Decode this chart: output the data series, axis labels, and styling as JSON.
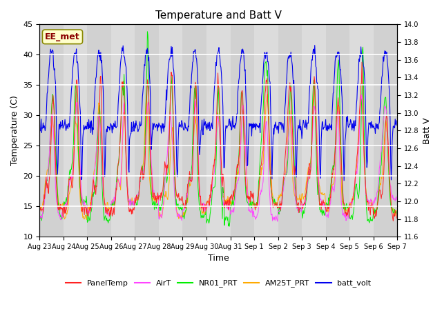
{
  "title": "Temperature and Batt V",
  "xlabel": "Time",
  "ylabel_left": "Temperature (C)",
  "ylabel_right": "Batt V",
  "ylim_left": [
    10,
    45
  ],
  "ylim_right": [
    11.6,
    14.0
  ],
  "annotation_text": "EE_met",
  "annotation_color": "#8B0000",
  "annotation_bg": "#FFFFCC",
  "plot_bg": "#D8D8D8",
  "grid_color": "white",
  "line_colors": {
    "PanelTemp": "#FF2222",
    "AirT": "#FF44FF",
    "NR01_PRT": "#00EE00",
    "AM25T_PRT": "#FFAA00",
    "batt_volt": "#0000EE"
  },
  "x_tick_labels": [
    "Aug 23",
    "Aug 24",
    "Aug 25",
    "Aug 26",
    "Aug 27",
    "Aug 28",
    "Aug 29",
    "Aug 30",
    "Aug 31",
    "Sep 1",
    "Sep 2",
    "Sep 3",
    "Sep 4",
    "Sep 5",
    "Sep 6",
    "Sep 7"
  ],
  "n_days": 15,
  "pts_per_day": 48,
  "batt_ylim": [
    11.6,
    14.0
  ],
  "temp_ylim": [
    10,
    45
  ]
}
